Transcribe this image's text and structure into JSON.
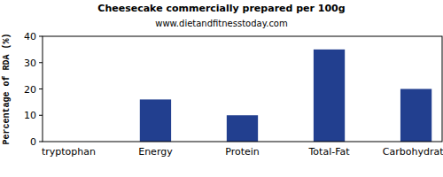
{
  "chart_data": {
    "type": "bar",
    "title": "Cheesecake commercially prepared per 100g",
    "subtitle": "www.dietandfitnesstoday.com",
    "y_label": "Percentage of RDA (%)",
    "categories": [
      "tryptophan",
      "Energy",
      "Protein",
      "Total-Fat",
      "Carbohydrate"
    ],
    "values": [
      0,
      16,
      10,
      35,
      20
    ],
    "color": "#223f8f",
    "ylim": [
      0,
      40
    ],
    "yticks": [
      0,
      10,
      20,
      30,
      40
    ],
    "grid": false
  }
}
